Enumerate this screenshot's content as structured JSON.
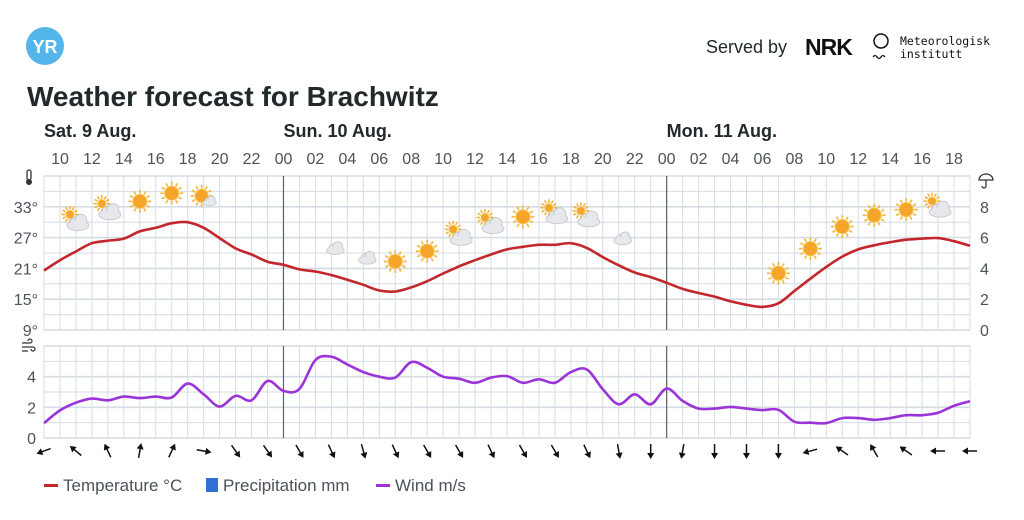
{
  "header": {
    "logo_text": "YR",
    "served_by": "Served by",
    "nrk_logo_text": "NRK",
    "met_logo_line1": "Meteorologisk",
    "met_logo_line2": "institutt",
    "title": "Weather forecast for Brachwitz"
  },
  "colors": {
    "temperature": "#c3272b",
    "precipitation": "#2f6fd6",
    "wind": "#9b34d8",
    "grid": "#d6dce3",
    "day_line": "#5a6168",
    "logo": "#54b5ea"
  },
  "days": [
    {
      "label": "Sat. 9 Aug.",
      "hour": 9
    },
    {
      "label": "Sun. 10 Aug.",
      "hour": 24
    },
    {
      "label": "Mon. 11 Aug.",
      "hour": 48
    }
  ],
  "hour_ticks": [
    {
      "hour": 10,
      "label": "10"
    },
    {
      "hour": 12,
      "label": "12"
    },
    {
      "hour": 14,
      "label": "14"
    },
    {
      "hour": 16,
      "label": "16"
    },
    {
      "hour": 18,
      "label": "18"
    },
    {
      "hour": 20,
      "label": "20"
    },
    {
      "hour": 22,
      "label": "22"
    },
    {
      "hour": 24,
      "label": "00"
    },
    {
      "hour": 26,
      "label": "02"
    },
    {
      "hour": 28,
      "label": "04"
    },
    {
      "hour": 30,
      "label": "06"
    },
    {
      "hour": 32,
      "label": "08"
    },
    {
      "hour": 34,
      "label": "10"
    },
    {
      "hour": 36,
      "label": "12"
    },
    {
      "hour": 38,
      "label": "14"
    },
    {
      "hour": 40,
      "label": "16"
    },
    {
      "hour": 42,
      "label": "18"
    },
    {
      "hour": 44,
      "label": "20"
    },
    {
      "hour": 46,
      "label": "22"
    },
    {
      "hour": 48,
      "label": "00"
    },
    {
      "hour": 50,
      "label": "02"
    },
    {
      "hour": 52,
      "label": "04"
    },
    {
      "hour": 54,
      "label": "06"
    },
    {
      "hour": 56,
      "label": "08"
    },
    {
      "hour": 58,
      "label": "10"
    },
    {
      "hour": 60,
      "label": "12"
    },
    {
      "hour": 62,
      "label": "14"
    },
    {
      "hour": 64,
      "label": "16"
    },
    {
      "hour": 66,
      "label": "18"
    }
  ],
  "chart_data": {
    "type": "line",
    "x_unit": "hours since Sat 00:00",
    "xlim": [
      9,
      67
    ],
    "temperature": {
      "name": "Temperature °C",
      "ylim": [
        9,
        39
      ],
      "ticks": [
        {
          "v": 33,
          "label": "33°"
        },
        {
          "v": 27,
          "label": "27°"
        },
        {
          "v": 21,
          "label": "21°"
        },
        {
          "v": 15,
          "label": "15°"
        },
        {
          "v": 9,
          "label": "9°"
        }
      ],
      "points": [
        [
          9,
          20.6
        ],
        [
          10,
          22.6
        ],
        [
          11,
          24.3
        ],
        [
          12,
          25.9
        ],
        [
          13,
          26.4
        ],
        [
          14,
          26.8
        ],
        [
          15,
          28.2
        ],
        [
          16,
          28.9
        ],
        [
          17,
          29.8
        ],
        [
          18,
          30.0
        ],
        [
          19,
          28.9
        ],
        [
          20,
          26.9
        ],
        [
          21,
          24.9
        ],
        [
          22,
          23.7
        ],
        [
          23,
          22.3
        ],
        [
          24,
          21.7
        ],
        [
          25,
          20.8
        ],
        [
          26,
          20.4
        ],
        [
          27,
          19.7
        ],
        [
          28,
          18.8
        ],
        [
          29,
          17.8
        ],
        [
          30,
          16.7
        ],
        [
          31,
          16.5
        ],
        [
          32,
          17.3
        ],
        [
          33,
          18.5
        ],
        [
          34,
          20.0
        ],
        [
          35,
          21.4
        ],
        [
          36,
          22.6
        ],
        [
          37,
          23.7
        ],
        [
          38,
          24.7
        ],
        [
          39,
          25.2
        ],
        [
          40,
          25.6
        ],
        [
          41,
          25.6
        ],
        [
          42,
          25.9
        ],
        [
          43,
          25.0
        ],
        [
          44,
          23.2
        ],
        [
          45,
          21.6
        ],
        [
          46,
          20.2
        ],
        [
          47,
          19.3
        ],
        [
          48,
          18.2
        ],
        [
          49,
          17.0
        ],
        [
          50,
          16.2
        ],
        [
          51,
          15.5
        ],
        [
          52,
          14.6
        ],
        [
          53,
          13.9
        ],
        [
          54,
          13.5
        ],
        [
          55,
          14.2
        ],
        [
          56,
          16.6
        ],
        [
          57,
          19.0
        ],
        [
          58,
          21.3
        ],
        [
          59,
          23.3
        ],
        [
          60,
          24.7
        ],
        [
          61,
          25.5
        ],
        [
          62,
          26.1
        ],
        [
          63,
          26.6
        ],
        [
          64,
          26.8
        ],
        [
          65,
          26.9
        ],
        [
          66,
          26.3
        ],
        [
          67,
          25.4
        ]
      ]
    },
    "precipitation": {
      "name": "Precipitation mm",
      "ylim": [
        0,
        10
      ],
      "ticks": [
        {
          "v": 8,
          "label": "8"
        },
        {
          "v": 6,
          "label": "6"
        },
        {
          "v": 4,
          "label": "4"
        },
        {
          "v": 2,
          "label": "2"
        },
        {
          "v": 0,
          "label": "0"
        }
      ],
      "values": []
    },
    "wind": {
      "name": "Wind m/s",
      "ylim": [
        0,
        6
      ],
      "ticks": [
        {
          "v": 4,
          "label": "4"
        },
        {
          "v": 2,
          "label": "2"
        },
        {
          "v": 0,
          "label": "0"
        }
      ],
      "points": [
        [
          9,
          0.97
        ],
        [
          10,
          1.8
        ],
        [
          11,
          2.3
        ],
        [
          12,
          2.57
        ],
        [
          13,
          2.46
        ],
        [
          14,
          2.7
        ],
        [
          15,
          2.6
        ],
        [
          16,
          2.7
        ],
        [
          17,
          2.64
        ],
        [
          18,
          3.55
        ],
        [
          19,
          2.85
        ],
        [
          20,
          2.05
        ],
        [
          21,
          2.75
        ],
        [
          22,
          2.46
        ],
        [
          23,
          3.72
        ],
        [
          24,
          3.07
        ],
        [
          25,
          3.2
        ],
        [
          26,
          5.08
        ],
        [
          27,
          5.3
        ],
        [
          28,
          4.8
        ],
        [
          29,
          4.3
        ],
        [
          30,
          4.0
        ],
        [
          31,
          3.94
        ],
        [
          32,
          4.95
        ],
        [
          33,
          4.58
        ],
        [
          34,
          4.0
        ],
        [
          35,
          3.87
        ],
        [
          36,
          3.6
        ],
        [
          37,
          3.94
        ],
        [
          38,
          4.04
        ],
        [
          39,
          3.6
        ],
        [
          40,
          3.83
        ],
        [
          41,
          3.6
        ],
        [
          42,
          4.3
        ],
        [
          43,
          4.47
        ],
        [
          44,
          3.18
        ],
        [
          45,
          2.2
        ],
        [
          46,
          2.85
        ],
        [
          47,
          2.2
        ],
        [
          48,
          3.22
        ],
        [
          49,
          2.42
        ],
        [
          50,
          1.92
        ],
        [
          51,
          1.92
        ],
        [
          52,
          2.03
        ],
        [
          53,
          1.92
        ],
        [
          54,
          1.82
        ],
        [
          55,
          1.84
        ],
        [
          56,
          1.06
        ],
        [
          57,
          1.0
        ],
        [
          58,
          0.97
        ],
        [
          59,
          1.3
        ],
        [
          60,
          1.3
        ],
        [
          61,
          1.19
        ],
        [
          62,
          1.3
        ],
        [
          63,
          1.49
        ],
        [
          64,
          1.49
        ],
        [
          65,
          1.65
        ],
        [
          66,
          2.1
        ],
        [
          67,
          2.4
        ]
      ]
    },
    "weather_icons": [
      {
        "hour": 11,
        "type": "partly-cloudy-day"
      },
      {
        "hour": 13,
        "type": "partly-cloudy-day"
      },
      {
        "hour": 15,
        "type": "clear-sky-day"
      },
      {
        "hour": 17,
        "type": "clear-sky-day"
      },
      {
        "hour": 19,
        "type": "fair-day"
      },
      {
        "hour": 21,
        "type": "clear-sky-night"
      },
      {
        "hour": 23,
        "type": "clear-sky-night"
      },
      {
        "hour": 25,
        "type": "clear-sky-night"
      },
      {
        "hour": 27,
        "type": "partly-cloudy-night"
      },
      {
        "hour": 29,
        "type": "partly-cloudy-night"
      },
      {
        "hour": 31,
        "type": "clear-sky-day"
      },
      {
        "hour": 33,
        "type": "clear-sky-day"
      },
      {
        "hour": 35,
        "type": "partly-cloudy-day"
      },
      {
        "hour": 37,
        "type": "partly-cloudy-day"
      },
      {
        "hour": 39,
        "type": "clear-sky-day"
      },
      {
        "hour": 41,
        "type": "partly-cloudy-day"
      },
      {
        "hour": 43,
        "type": "partly-cloudy-day"
      },
      {
        "hour": 45,
        "type": "partly-cloudy-night"
      },
      {
        "hour": 47,
        "type": "clear-sky-night"
      },
      {
        "hour": 49,
        "type": "clear-sky-night"
      },
      {
        "hour": 51,
        "type": "clear-sky-night"
      },
      {
        "hour": 53,
        "type": "clear-sky-night"
      },
      {
        "hour": 55,
        "type": "clear-sky-day"
      },
      {
        "hour": 57,
        "type": "clear-sky-day"
      },
      {
        "hour": 59,
        "type": "clear-sky-day"
      },
      {
        "hour": 61,
        "type": "clear-sky-day"
      },
      {
        "hour": 63,
        "type": "clear-sky-day"
      },
      {
        "hour": 65,
        "type": "partly-cloudy-day"
      }
    ],
    "wind_directions_deg": [
      {
        "hour": 9,
        "angle": 250
      },
      {
        "hour": 11,
        "angle": 310
      },
      {
        "hour": 13,
        "angle": 335
      },
      {
        "hour": 15,
        "angle": 10
      },
      {
        "hour": 17,
        "angle": 25
      },
      {
        "hour": 19,
        "angle": 100
      },
      {
        "hour": 21,
        "angle": 145
      },
      {
        "hour": 23,
        "angle": 145
      },
      {
        "hour": 25,
        "angle": 150
      },
      {
        "hour": 27,
        "angle": 155
      },
      {
        "hour": 29,
        "angle": 165
      },
      {
        "hour": 31,
        "angle": 155
      },
      {
        "hour": 33,
        "angle": 150
      },
      {
        "hour": 35,
        "angle": 150
      },
      {
        "hour": 37,
        "angle": 155
      },
      {
        "hour": 39,
        "angle": 150
      },
      {
        "hour": 41,
        "angle": 150
      },
      {
        "hour": 43,
        "angle": 155
      },
      {
        "hour": 45,
        "angle": 170
      },
      {
        "hour": 47,
        "angle": 180
      },
      {
        "hour": 49,
        "angle": 190
      },
      {
        "hour": 51,
        "angle": 180
      },
      {
        "hour": 53,
        "angle": 180
      },
      {
        "hour": 55,
        "angle": 180
      },
      {
        "hour": 57,
        "angle": 255
      },
      {
        "hour": 59,
        "angle": 305
      },
      {
        "hour": 61,
        "angle": 330
      },
      {
        "hour": 63,
        "angle": 305
      },
      {
        "hour": 65,
        "angle": 270
      },
      {
        "hour": 67,
        "angle": 270
      }
    ]
  },
  "legend": [
    {
      "key": "temperature",
      "label": "Temperature °C"
    },
    {
      "key": "precipitation",
      "label": "Precipitation mm"
    },
    {
      "key": "wind",
      "label": "Wind m/s"
    }
  ]
}
